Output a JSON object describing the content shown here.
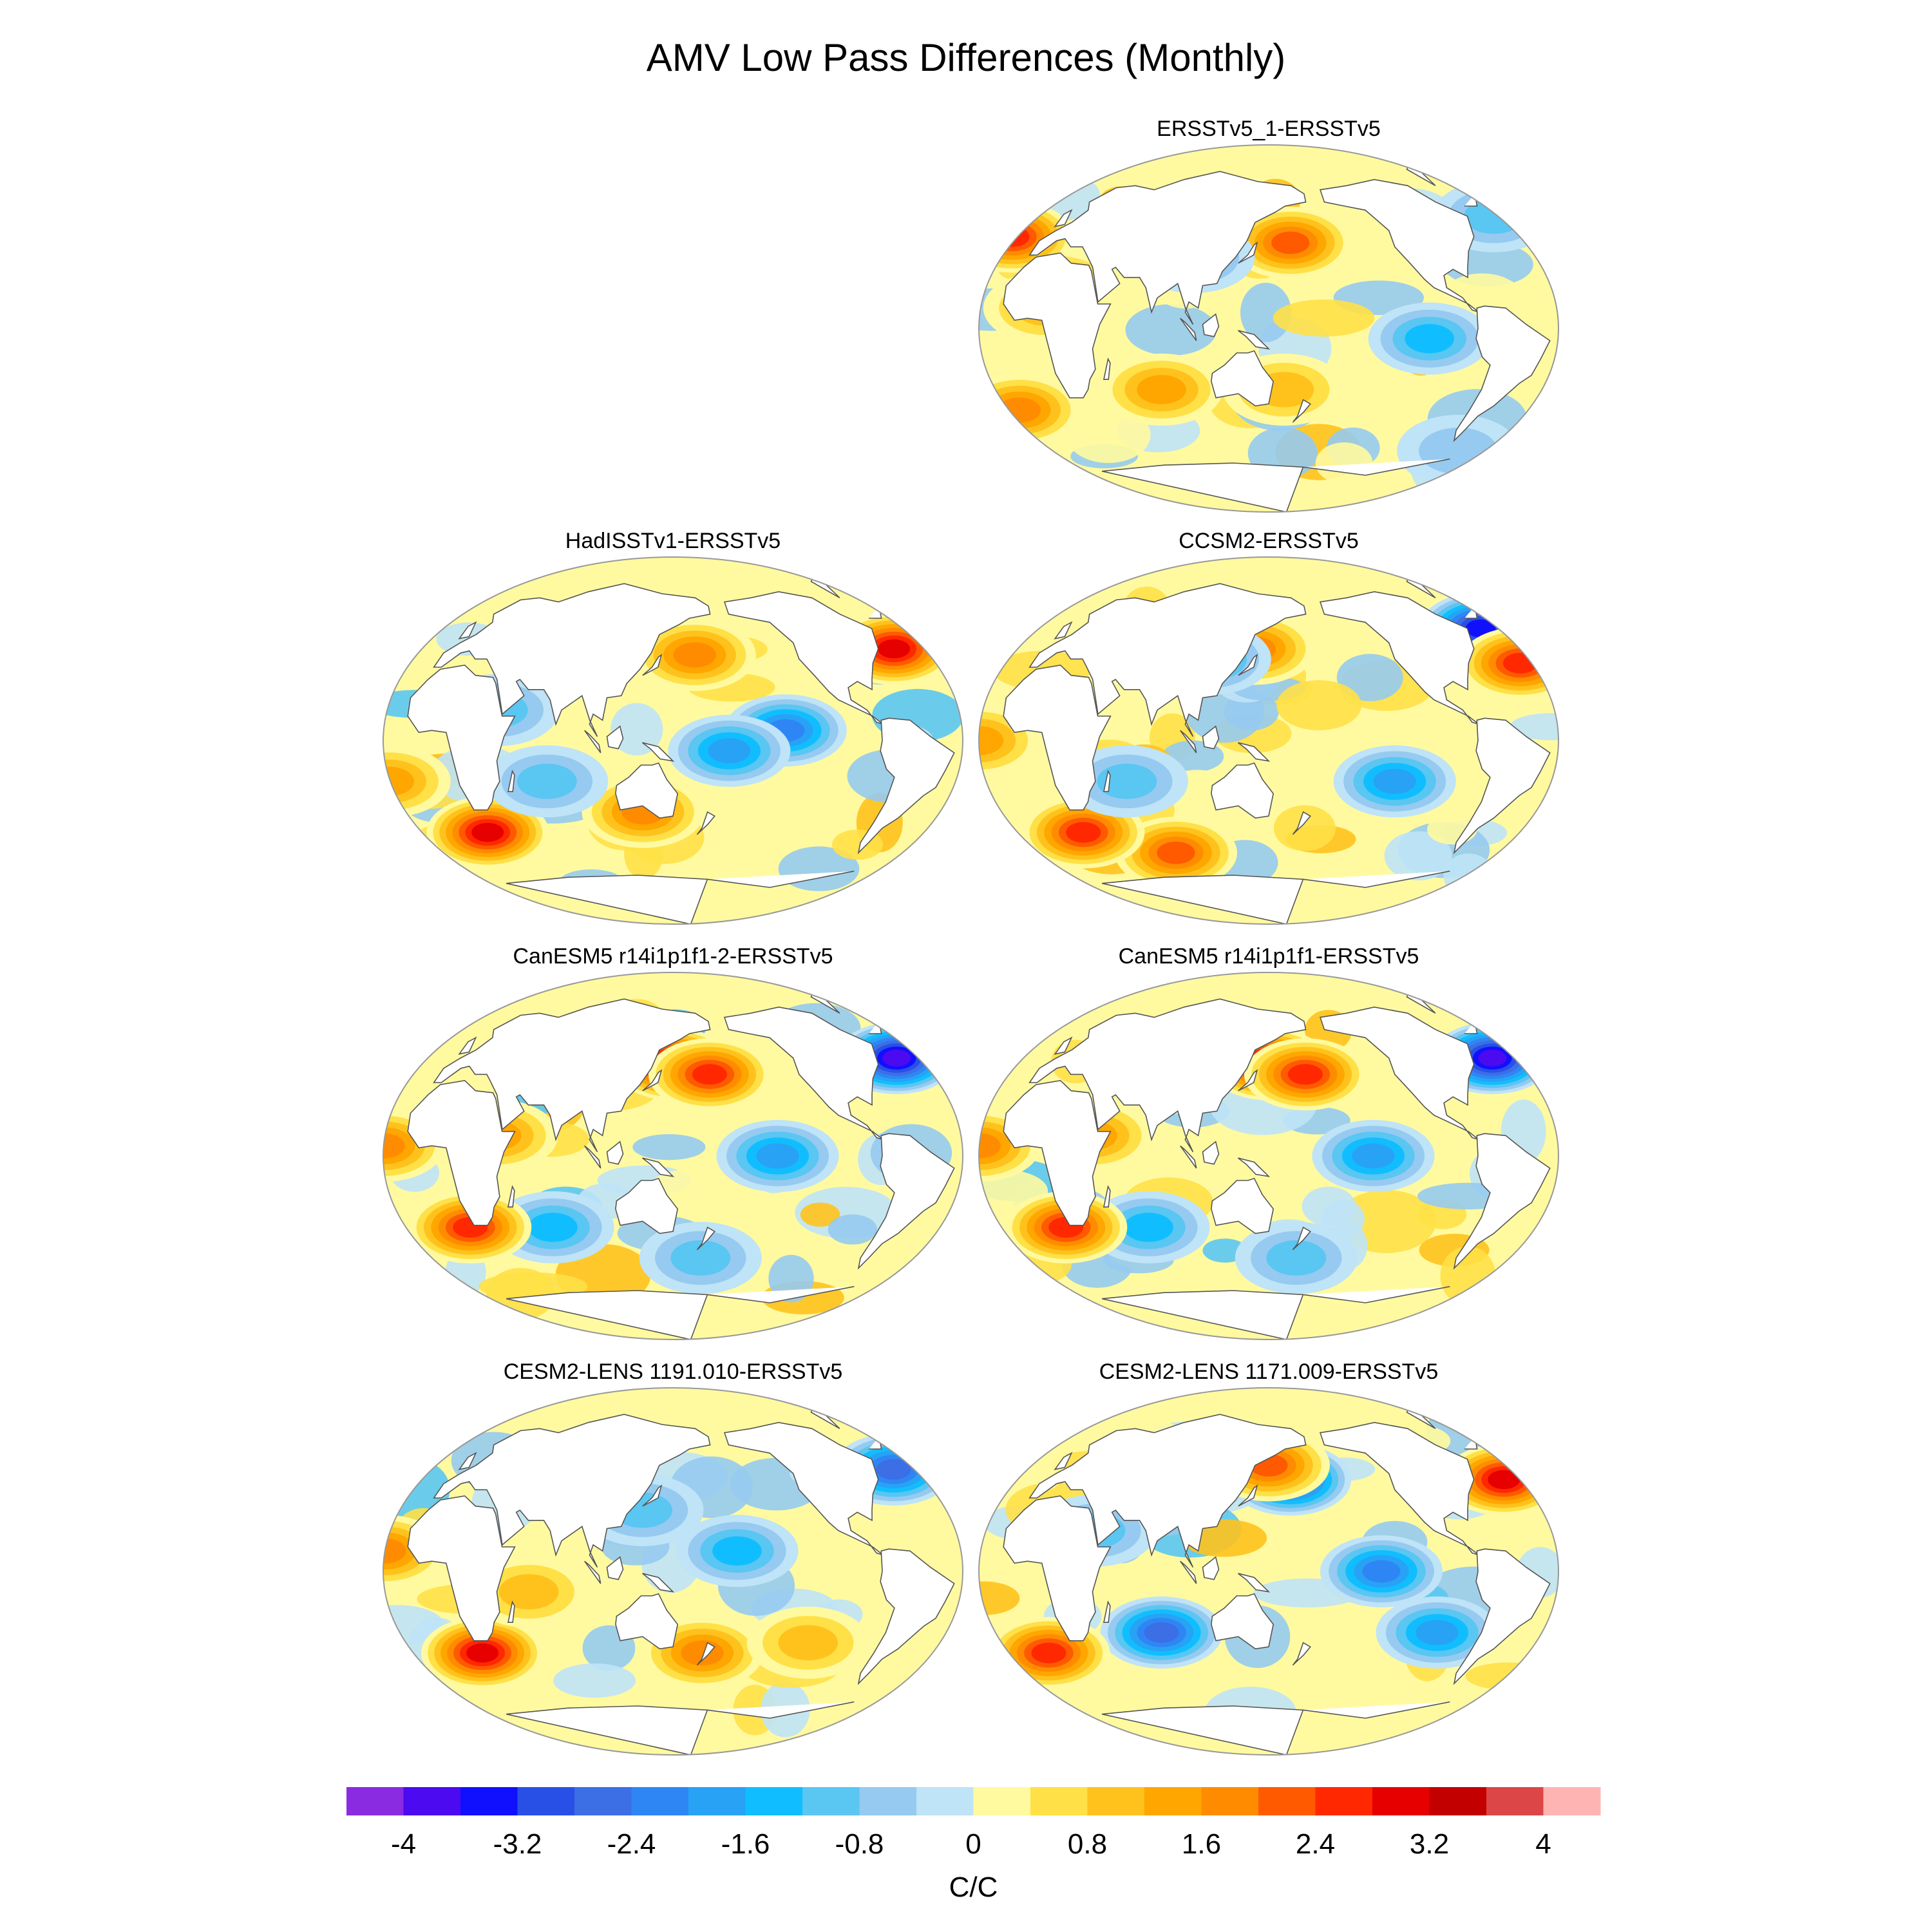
{
  "figure": {
    "title": "AMV Low Pass Differences (Monthly)",
    "projection": "Robinson (Pacific-centered)",
    "colors": {
      "land": "#ffffff",
      "coastline": "#555555",
      "frame": "#999999"
    }
  },
  "chart_data": {
    "type": "heatmap",
    "title": "AMV Low Pass Differences (Monthly)",
    "units": "C/C",
    "panel_grid": "4 rows x 2 columns (top-left empty)",
    "panels": [
      {
        "row": 0,
        "col": 1,
        "title": "ERSSTv5_1-ERSSTv5",
        "features": [
          {
            "lon": 165,
            "lat": 42,
            "value": 2.2
          },
          {
            "lon": 100,
            "lat": 35,
            "value": -1.2
          },
          {
            "lon": -110,
            "lat": -5,
            "value": -1.6
          },
          {
            "lon": -30,
            "lat": 45,
            "value": 2.6
          },
          {
            "lon": -40,
            "lat": 55,
            "value": -1.4
          },
          {
            "lon": 80,
            "lat": -30,
            "value": 1.6
          },
          {
            "lon": -20,
            "lat": -40,
            "value": 2.0
          },
          {
            "lon": 160,
            "lat": -30,
            "value": 1.0
          },
          {
            "lon": -60,
            "lat": -60,
            "value": -0.8
          },
          {
            "lon": 10,
            "lat": 10,
            "value": 1.2
          }
        ]
      },
      {
        "row": 1,
        "col": 0,
        "title": "HadISSTv1-ERSSTv5",
        "features": [
          {
            "lon": 165,
            "lat": 42,
            "value": 2.0
          },
          {
            "lon": -140,
            "lat": 5,
            "value": -2.2
          },
          {
            "lon": -175,
            "lat": -5,
            "value": -1.8
          },
          {
            "lon": 130,
            "lat": -35,
            "value": 1.8
          },
          {
            "lon": 20,
            "lat": -45,
            "value": 3.2
          },
          {
            "lon": -55,
            "lat": 45,
            "value": 3.0
          },
          {
            "lon": 70,
            "lat": -20,
            "value": -1.2
          },
          {
            "lon": -30,
            "lat": -20,
            "value": 1.6
          },
          {
            "lon": 40,
            "lat": 15,
            "value": -1.0
          }
        ]
      },
      {
        "row": 1,
        "col": 1,
        "title": "CCSM2-ERSSTv5",
        "features": [
          {
            "lon": 140,
            "lat": 45,
            "value": 2.0
          },
          {
            "lon": 110,
            "lat": 40,
            "value": -1.6
          },
          {
            "lon": -130,
            "lat": -20,
            "value": -1.8
          },
          {
            "lon": -50,
            "lat": 55,
            "value": -3.4
          },
          {
            "lon": -40,
            "lat": 38,
            "value": 2.6
          },
          {
            "lon": 80,
            "lat": -55,
            "value": 2.4
          },
          {
            "lon": 20,
            "lat": -45,
            "value": 2.8
          },
          {
            "lon": -30,
            "lat": 0,
            "value": 1.6
          },
          {
            "lon": 60,
            "lat": -20,
            "value": -1.0
          }
        ]
      },
      {
        "row": 2,
        "col": 0,
        "title": "CanESM5 r14i1p1f1-2-ERSSTv5",
        "features": [
          {
            "lon": 150,
            "lat": 45,
            "value": 3.4
          },
          {
            "lon": 175,
            "lat": 40,
            "value": 2.8
          },
          {
            "lon": -145,
            "lat": 0,
            "value": -1.8
          },
          {
            "lon": -50,
            "lat": 48,
            "value": -4.0
          },
          {
            "lon": 70,
            "lat": -35,
            "value": -1.6
          },
          {
            "lon": 15,
            "lat": -35,
            "value": 2.8
          },
          {
            "lon": -30,
            "lat": 5,
            "value": 1.8
          },
          {
            "lon": 170,
            "lat": -50,
            "value": -1.2
          },
          {
            "lon": 40,
            "lat": 10,
            "value": 1.6
          }
        ]
      },
      {
        "row": 2,
        "col": 1,
        "title": "CanESM5 r14i1p1f1-ERSSTv5",
        "features": [
          {
            "lon": 150,
            "lat": 45,
            "value": 3.4
          },
          {
            "lon": 175,
            "lat": 40,
            "value": 2.8
          },
          {
            "lon": -145,
            "lat": 0,
            "value": -1.8
          },
          {
            "lon": -50,
            "lat": 48,
            "value": -4.0
          },
          {
            "lon": 70,
            "lat": -35,
            "value": -1.6
          },
          {
            "lon": 15,
            "lat": -35,
            "value": 2.8
          },
          {
            "lon": -30,
            "lat": 5,
            "value": 1.8
          },
          {
            "lon": 170,
            "lat": -50,
            "value": -1.2
          },
          {
            "lon": 40,
            "lat": 10,
            "value": 1.6
          }
        ]
      },
      {
        "row": 3,
        "col": 0,
        "title": "CESM2-LENS 1191.010-ERSSTv5",
        "features": [
          {
            "lon": -170,
            "lat": 10,
            "value": -1.6
          },
          {
            "lon": 130,
            "lat": 30,
            "value": -1.2
          },
          {
            "lon": 20,
            "lat": -40,
            "value": 3.0
          },
          {
            "lon": 170,
            "lat": -40,
            "value": 2.0
          },
          {
            "lon": -50,
            "lat": 50,
            "value": -2.6
          },
          {
            "lon": -30,
            "lat": 10,
            "value": 1.8
          },
          {
            "lon": 60,
            "lat": -10,
            "value": 1.2
          },
          {
            "lon": -120,
            "lat": -35,
            "value": 1.4
          }
        ]
      },
      {
        "row": 3,
        "col": 1,
        "title": "CESM2-LENS 1171.009-ERSSTv5",
        "features": [
          {
            "lon": 165,
            "lat": 45,
            "value": -3.0
          },
          {
            "lon": 150,
            "lat": 52,
            "value": 2.4
          },
          {
            "lon": -140,
            "lat": 0,
            "value": -2.2
          },
          {
            "lon": 80,
            "lat": -30,
            "value": -2.8
          },
          {
            "lon": -45,
            "lat": 45,
            "value": 3.0
          },
          {
            "lon": 0,
            "lat": -40,
            "value": 2.6
          },
          {
            "lon": -100,
            "lat": -30,
            "value": -1.8
          },
          {
            "lon": 40,
            "lat": 20,
            "value": -1.0
          }
        ]
      }
    ],
    "colorbar": {
      "label": "C/C",
      "tick_labels": [
        "-4",
        "-3.2",
        "-2.4",
        "-1.6",
        "-0.8",
        "0",
        "0.8",
        "1.6",
        "2.4",
        "3.2",
        "4"
      ],
      "levels": [
        -4.4,
        -4.0,
        -3.6,
        -3.2,
        -2.8,
        -2.4,
        -2.0,
        -1.6,
        -1.2,
        -0.8,
        -0.4,
        0,
        0.4,
        0.8,
        1.2,
        1.6,
        2.0,
        2.4,
        2.8,
        3.2,
        3.6,
        4.0,
        4.4
      ],
      "colors": [
        "#8a2be2",
        "#4b0aef",
        "#1010ff",
        "#2850e6",
        "#3c6ee6",
        "#2e86f5",
        "#28a2f5",
        "#10beff",
        "#5ac6f2",
        "#96caf0",
        "#bfe3f7",
        "#fffaa0",
        "#ffe047",
        "#ffc21d",
        "#ffa600",
        "#ff8c00",
        "#ff5a00",
        "#ff2800",
        "#e60000",
        "#c30000",
        "#dc4646",
        "#ffb4b4"
      ]
    }
  }
}
